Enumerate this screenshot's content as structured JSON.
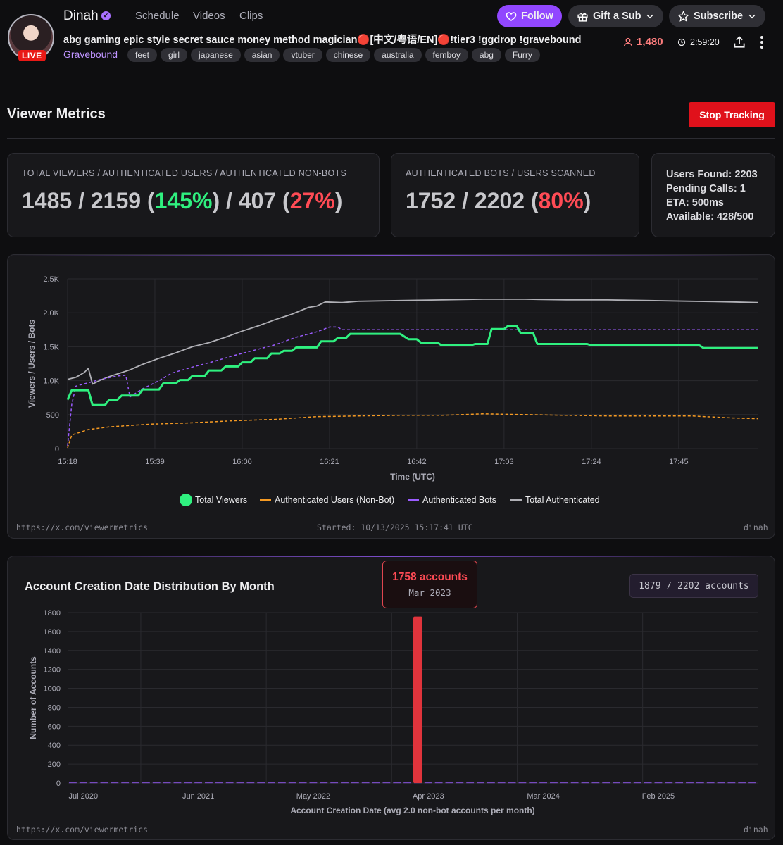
{
  "header": {
    "streamer_name": "Dinah",
    "live_label": "LIVE",
    "nav": [
      "Schedule",
      "Videos",
      "Clips"
    ],
    "stream_title": "abg gaming epic style secret sauce money method magician🔴[中文/粤语/EN]🔴!tier3 !ggdrop !gravebound",
    "category": "Gravebound",
    "tags": [
      "feet",
      "girl",
      "japanese",
      "asian",
      "vtuber",
      "chinese",
      "australia",
      "femboy",
      "abg",
      "Furry"
    ],
    "follow_label": "Follow",
    "gift_label": "Gift a Sub",
    "subscribe_label": "Subscribe",
    "viewer_count": "1,480",
    "uptime": "2:59:20"
  },
  "metrics": {
    "title": "Viewer Metrics",
    "stop_label": "Stop Tracking",
    "card1_label": "TOTAL VIEWERS / AUTHENTICATED USERS / AUTHENTICATED NON-BOTS",
    "card1_a": "1485 / 2159 (",
    "card1_pct1": "145%",
    "card1_b": ") / 407 (",
    "card1_pct2": "27%",
    "card1_c": ")",
    "card2_label": "AUTHENTICATED BOTS / USERS SCANNED",
    "card2_a": "1752 / 2202 (",
    "card2_pct": "80%",
    "card2_c": ")",
    "info": {
      "users_found": "Users Found: 2203",
      "pending": "Pending Calls: 1",
      "eta": "ETA: 500ms",
      "available": "Available: 428/500"
    }
  },
  "line_chart_footer": {
    "url": "https://x.com/viewermetrics",
    "started": "Started: 10/13/2025 15:17:41 UTC",
    "user": "dinah"
  },
  "bar_chart_header": {
    "title": "Account Creation Date Distribution By Month",
    "tooltip_title": "1758 accounts",
    "tooltip_sub": "Mar 2023",
    "badge": "1879 / 2202 accounts"
  },
  "bar_chart_footer": {
    "url": "https://x.com/viewermetrics",
    "user": "dinah"
  },
  "colors": {
    "viewers": "#2ff07f",
    "nonbot": "#f59a23",
    "bots": "#9b5cff",
    "total_auth": "#b0b0b6",
    "bar": "#e0343c"
  },
  "chart_data": [
    {
      "type": "line",
      "title": "",
      "xlabel": "Time (UTC)",
      "ylabel": "Viewers / Users / Bots",
      "x_ticks": [
        "15:18",
        "15:39",
        "16:00",
        "16:21",
        "16:42",
        "17:03",
        "17:24",
        "17:45"
      ],
      "y_ticks": [
        "0",
        "500",
        "1.0K",
        "1.5K",
        "2.0K",
        "2.5K"
      ],
      "xlim_minutes": [
        0,
        166
      ],
      "ylim": [
        0,
        2500
      ],
      "legend_position": "bottom",
      "series": [
        {
          "name": "Total Viewers",
          "style": "solid",
          "points": [
            [
              0,
              720
            ],
            [
              1,
              860
            ],
            [
              5,
              860
            ],
            [
              6,
              640
            ],
            [
              9,
              640
            ],
            [
              10,
              720
            ],
            [
              12,
              720
            ],
            [
              13,
              780
            ],
            [
              17,
              780
            ],
            [
              18,
              870
            ],
            [
              22,
              870
            ],
            [
              23,
              960
            ],
            [
              26,
              960
            ],
            [
              27,
              1010
            ],
            [
              29,
              1010
            ],
            [
              30,
              1070
            ],
            [
              33,
              1070
            ],
            [
              34,
              1150
            ],
            [
              37,
              1150
            ],
            [
              38,
              1210
            ],
            [
              41,
              1210
            ],
            [
              42,
              1270
            ],
            [
              44,
              1270
            ],
            [
              45,
              1330
            ],
            [
              48,
              1330
            ],
            [
              49,
              1400
            ],
            [
              51,
              1400
            ],
            [
              52,
              1440
            ],
            [
              54,
              1440
            ],
            [
              55,
              1490
            ],
            [
              60,
              1490
            ],
            [
              61,
              1580
            ],
            [
              64,
              1580
            ],
            [
              65,
              1630
            ],
            [
              67,
              1630
            ],
            [
              68,
              1690
            ],
            [
              75,
              1690
            ],
            [
              76,
              1690
            ],
            [
              80,
              1690
            ],
            [
              82,
              1610
            ],
            [
              84,
              1610
            ],
            [
              85,
              1560
            ],
            [
              89,
              1560
            ],
            [
              90,
              1520
            ],
            [
              97,
              1520
            ],
            [
              98,
              1540
            ],
            [
              101,
              1540
            ],
            [
              102,
              1760
            ],
            [
              105,
              1760
            ],
            [
              106,
              1810
            ],
            [
              108,
              1810
            ],
            [
              109,
              1700
            ],
            [
              112,
              1700
            ],
            [
              113,
              1540
            ],
            [
              125,
              1540
            ],
            [
              126,
              1520
            ],
            [
              140,
              1520
            ],
            [
              141,
              1520
            ],
            [
              152,
              1520
            ],
            [
              153,
              1480
            ],
            [
              166,
              1480
            ]
          ]
        },
        {
          "name": "Authenticated Users (Non-Bot)",
          "style": "dashed",
          "points": [
            [
              0,
              10
            ],
            [
              1,
              200
            ],
            [
              5,
              280
            ],
            [
              10,
              320
            ],
            [
              20,
              360
            ],
            [
              30,
              380
            ],
            [
              40,
              410
            ],
            [
              50,
              430
            ],
            [
              60,
              470
            ],
            [
              70,
              480
            ],
            [
              80,
              490
            ],
            [
              90,
              490
            ],
            [
              100,
              510
            ],
            [
              110,
              500
            ],
            [
              120,
              490
            ],
            [
              130,
              480
            ],
            [
              140,
              480
            ],
            [
              150,
              480
            ],
            [
              160,
              450
            ],
            [
              166,
              440
            ]
          ]
        },
        {
          "name": "Authenticated Bots",
          "style": "dashed",
          "points": [
            [
              0,
              40
            ],
            [
              1,
              650
            ],
            [
              2,
              920
            ],
            [
              8,
              1020
            ],
            [
              12,
              1070
            ],
            [
              14,
              1080
            ],
            [
              15,
              760
            ],
            [
              18,
              880
            ],
            [
              22,
              1000
            ],
            [
              25,
              1110
            ],
            [
              30,
              1200
            ],
            [
              35,
              1280
            ],
            [
              40,
              1370
            ],
            [
              45,
              1450
            ],
            [
              50,
              1530
            ],
            [
              55,
              1640
            ],
            [
              60,
              1720
            ],
            [
              63,
              1790
            ],
            [
              65,
              1790
            ],
            [
              66,
              1750
            ],
            [
              166,
              1750
            ]
          ]
        },
        {
          "name": "Total Authenticated",
          "style": "solid",
          "points": [
            [
              0,
              1020
            ],
            [
              2,
              1050
            ],
            [
              4,
              1120
            ],
            [
              5,
              1180
            ],
            [
              6,
              950
            ],
            [
              8,
              1010
            ],
            [
              10,
              1060
            ],
            [
              12,
              1100
            ],
            [
              15,
              1160
            ],
            [
              18,
              1240
            ],
            [
              22,
              1330
            ],
            [
              26,
              1410
            ],
            [
              30,
              1500
            ],
            [
              34,
              1560
            ],
            [
              38,
              1640
            ],
            [
              42,
              1730
            ],
            [
              46,
              1810
            ],
            [
              50,
              1900
            ],
            [
              54,
              1980
            ],
            [
              58,
              2080
            ],
            [
              60,
              2100
            ],
            [
              62,
              2160
            ],
            [
              66,
              2150
            ],
            [
              70,
              2170
            ],
            [
              80,
              2180
            ],
            [
              90,
              2190
            ],
            [
              100,
              2200
            ],
            [
              110,
              2200
            ],
            [
              120,
              2190
            ],
            [
              130,
              2190
            ],
            [
              140,
              2180
            ],
            [
              150,
              2170
            ],
            [
              160,
              2160
            ],
            [
              166,
              2150
            ]
          ]
        }
      ]
    },
    {
      "type": "bar",
      "title": "Account Creation Date Distribution By Month",
      "xlabel": "Account Creation Date (avg 2.0 non-bot accounts per month)",
      "ylabel": "Number of Accounts",
      "x_ticks": [
        "Jul 2020",
        "Jun 2021",
        "May 2022",
        "Apr 2023",
        "Mar 2024",
        "Feb 2025"
      ],
      "ylim": [
        0,
        1800
      ],
      "y_ticks": [
        0,
        200,
        400,
        600,
        800,
        1000,
        1200,
        1400,
        1600,
        1800
      ],
      "start_month": "2020-06",
      "months": 66,
      "bars": [
        {
          "month": "2023-03",
          "value": 1758
        }
      ],
      "baseline_value": 2
    }
  ]
}
